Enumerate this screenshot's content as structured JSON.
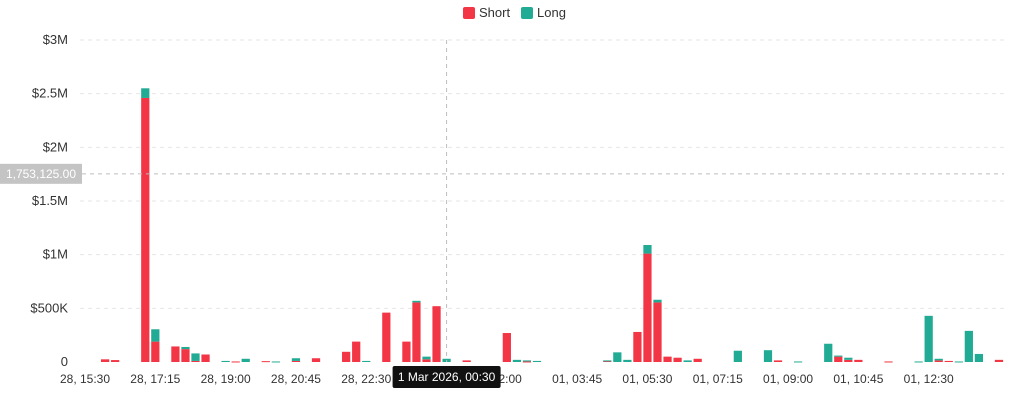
{
  "chart_data": {
    "type": "bar",
    "stacked": true,
    "legend": [
      {
        "name": "Short",
        "color": "#f23645"
      },
      {
        "name": "Long",
        "color": "#22ab94"
      }
    ],
    "ylim": [
      0,
      3000000
    ],
    "y_ticks": [
      {
        "value": 0,
        "label": "0"
      },
      {
        "value": 500000,
        "label": "$500K"
      },
      {
        "value": 1000000,
        "label": "$1M"
      },
      {
        "value": 1500000,
        "label": "$1.5M"
      },
      {
        "value": 2000000,
        "label": "$2M"
      },
      {
        "value": 2500000,
        "label": "$2.5M"
      },
      {
        "value": 3000000,
        "label": "$3M"
      }
    ],
    "x_ticks": [
      {
        "index": 0,
        "label": "28, 15:30"
      },
      {
        "index": 7,
        "label": "28, 17:15"
      },
      {
        "index": 14,
        "label": "28, 19:00"
      },
      {
        "index": 21,
        "label": "28, 20:45"
      },
      {
        "index": 28,
        "label": "28, 22:30"
      },
      {
        "index": 42,
        "label": "02:00"
      },
      {
        "index": 49,
        "label": "01, 03:45"
      },
      {
        "index": 56,
        "label": "01, 05:30"
      },
      {
        "index": 63,
        "label": "01, 07:15"
      },
      {
        "index": 70,
        "label": "01, 09:00"
      },
      {
        "index": 77,
        "label": "01, 10:45"
      },
      {
        "index": 84,
        "label": "01, 12:30"
      }
    ],
    "crosshair": {
      "index": 36,
      "x_label": "1 Mar 2026, 00:30",
      "y_value": 1753125,
      "y_label": "1,753,125.00"
    },
    "short": [
      0,
      0,
      25000,
      18000,
      0,
      0,
      2460000,
      190000,
      0,
      145000,
      120000,
      10000,
      70000,
      0,
      0,
      5000,
      0,
      0,
      8000,
      0,
      0,
      10000,
      0,
      35000,
      0,
      0,
      95000,
      190000,
      0,
      0,
      460000,
      0,
      190000,
      555000,
      25000,
      520000,
      0,
      0,
      15000,
      0,
      0,
      0,
      270000,
      0,
      5000,
      0,
      0,
      0,
      0,
      0,
      0,
      0,
      10000,
      0,
      0,
      280000,
      1010000,
      555000,
      50000,
      40000,
      0,
      30000,
      0,
      0,
      0,
      0,
      0,
      0,
      0,
      15000,
      0,
      0,
      0,
      0,
      0,
      50000,
      20000,
      20000,
      0,
      0,
      5000,
      0,
      0,
      0,
      0,
      15000,
      10000,
      0,
      0,
      0,
      0,
      20000
    ],
    "long": [
      0,
      0,
      0,
      0,
      0,
      0,
      90000,
      115000,
      0,
      0,
      20000,
      70000,
      0,
      0,
      10000,
      0,
      30000,
      0,
      0,
      5000,
      0,
      25000,
      0,
      0,
      0,
      0,
      0,
      0,
      10000,
      0,
      0,
      0,
      0,
      15000,
      25000,
      0,
      30000,
      0,
      0,
      0,
      0,
      0,
      0,
      20000,
      10000,
      10000,
      0,
      0,
      0,
      0,
      0,
      0,
      5000,
      90000,
      20000,
      0,
      80000,
      25000,
      0,
      0,
      15000,
      0,
      0,
      0,
      0,
      105000,
      0,
      0,
      110000,
      0,
      0,
      5000,
      0,
      0,
      170000,
      10000,
      20000,
      0,
      0,
      0,
      0,
      0,
      0,
      5000,
      430000,
      15000,
      0,
      5000,
      290000,
      75000,
      0,
      0
    ]
  }
}
